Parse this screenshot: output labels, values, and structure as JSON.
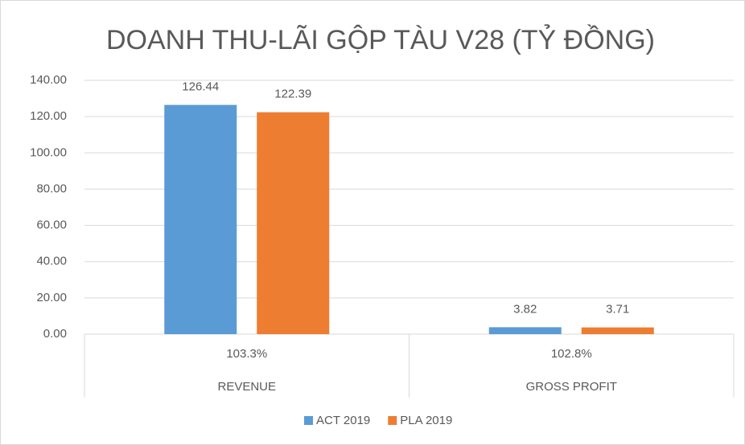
{
  "chart_data": {
    "type": "bar",
    "title": "DOANH THU-LÃI GỘP TÀU V28 (TỶ ĐỒNG)",
    "categories": [
      "REVENUE",
      "GROSS PROFIT"
    ],
    "subcategories": [
      "103.3%",
      "102.8%"
    ],
    "series": [
      {
        "name": "ACT 2019",
        "color": "#5b9bd5",
        "values": [
          126.44,
          3.82
        ]
      },
      {
        "name": "PLA 2019",
        "color": "#ed7d31",
        "values": [
          122.39,
          3.71
        ]
      }
    ],
    "ylim": [
      0,
      140
    ],
    "yticks": [
      {
        "value": 0,
        "label": "0.00"
      },
      {
        "value": 20,
        "label": "20.00"
      },
      {
        "value": 40,
        "label": "40.00"
      },
      {
        "value": 60,
        "label": "60.00"
      },
      {
        "value": 80,
        "label": "80.00"
      },
      {
        "value": 100,
        "label": "100.00"
      },
      {
        "value": 120,
        "label": "120.00"
      },
      {
        "value": 140,
        "label": "140.00"
      }
    ],
    "grid": true,
    "legend": "bottom"
  }
}
